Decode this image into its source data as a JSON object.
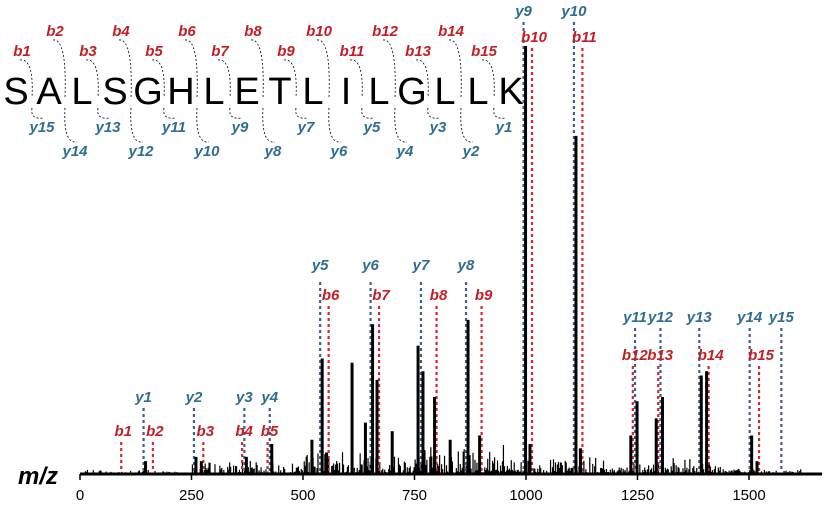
{
  "chart_data": {
    "type": "bar",
    "xlabel": "m/z",
    "xlim": [
      0,
      1650
    ],
    "ylim": [
      0,
      100
    ],
    "x_ticks": [
      "0",
      "250",
      "500",
      "750",
      "1000",
      "1250",
      "1500"
    ],
    "peptide": {
      "sequence": [
        "S",
        "A",
        "L",
        "S",
        "G",
        "H",
        "L",
        "E",
        "T",
        "L",
        "I",
        "L",
        "G",
        "L",
        "L",
        "K"
      ],
      "b_labels": [
        "b1",
        "b2",
        "b3",
        "b4",
        "b5",
        "b6",
        "b7",
        "b8",
        "b9",
        "b10",
        "b11",
        "b12",
        "b13",
        "b14",
        "b15"
      ],
      "y_labels": [
        "y15",
        "y14",
        "y13",
        "y12",
        "y11",
        "y10",
        "y9",
        "y8",
        "y7",
        "y6",
        "y5",
        "y4",
        "y3",
        "y2",
        "y1"
      ]
    },
    "b_ions": [
      {
        "label": "b1",
        "mz": 88
      },
      {
        "label": "b2",
        "mz": 159
      },
      {
        "label": "b3",
        "mz": 272
      },
      {
        "label": "b4",
        "mz": 359
      },
      {
        "label": "b5",
        "mz": 416
      },
      {
        "label": "b6",
        "mz": 553
      },
      {
        "label": "b7",
        "mz": 666
      },
      {
        "label": "b8",
        "mz": 795
      },
      {
        "label": "b9",
        "mz": 896
      },
      {
        "label": "b10",
        "mz": 1009
      },
      {
        "label": "b11",
        "mz": 1122
      },
      {
        "label": "b12",
        "mz": 1235
      },
      {
        "label": "b13",
        "mz": 1292
      },
      {
        "label": "b14",
        "mz": 1405
      },
      {
        "label": "b15",
        "mz": 1518
      }
    ],
    "y_ions": [
      {
        "label": "y1",
        "mz": 147
      },
      {
        "label": "y2",
        "mz": 260
      },
      {
        "label": "y3",
        "mz": 373
      },
      {
        "label": "y4",
        "mz": 430
      },
      {
        "label": "y5",
        "mz": 543
      },
      {
        "label": "y6",
        "mz": 656
      },
      {
        "label": "y7",
        "mz": 769
      },
      {
        "label": "y8",
        "mz": 870
      },
      {
        "label": "y9",
        "mz": 999
      },
      {
        "label": "y10",
        "mz": 1112
      },
      {
        "label": "y11",
        "mz": 1249
      },
      {
        "label": "y12",
        "mz": 1306
      },
      {
        "label": "y13",
        "mz": 1393
      },
      {
        "label": "y14",
        "mz": 1506
      },
      {
        "label": "y15",
        "mz": 1577
      }
    ],
    "peaks": [
      {
        "mz": 147,
        "intensity": 3
      },
      {
        "mz": 260,
        "intensity": 4
      },
      {
        "mz": 272,
        "intensity": 3
      },
      {
        "mz": 373,
        "intensity": 4
      },
      {
        "mz": 430,
        "intensity": 7
      },
      {
        "mz": 520,
        "intensity": 8
      },
      {
        "mz": 543,
        "intensity": 27
      },
      {
        "mz": 553,
        "intensity": 5
      },
      {
        "mz": 610,
        "intensity": 26
      },
      {
        "mz": 640,
        "intensity": 12
      },
      {
        "mz": 656,
        "intensity": 35
      },
      {
        "mz": 666,
        "intensity": 22
      },
      {
        "mz": 700,
        "intensity": 10
      },
      {
        "mz": 758,
        "intensity": 30
      },
      {
        "mz": 769,
        "intensity": 24
      },
      {
        "mz": 795,
        "intensity": 18
      },
      {
        "mz": 830,
        "intensity": 8
      },
      {
        "mz": 870,
        "intensity": 36
      },
      {
        "mz": 896,
        "intensity": 9
      },
      {
        "mz": 999,
        "intensity": 100
      },
      {
        "mz": 1009,
        "intensity": 7
      },
      {
        "mz": 1112,
        "intensity": 79
      },
      {
        "mz": 1122,
        "intensity": 6
      },
      {
        "mz": 1235,
        "intensity": 9
      },
      {
        "mz": 1249,
        "intensity": 17
      },
      {
        "mz": 1292,
        "intensity": 13
      },
      {
        "mz": 1306,
        "intensity": 18
      },
      {
        "mz": 1393,
        "intensity": 23
      },
      {
        "mz": 1405,
        "intensity": 24
      },
      {
        "mz": 1506,
        "intensity": 9
      },
      {
        "mz": 1518,
        "intensity": 3
      }
    ]
  }
}
